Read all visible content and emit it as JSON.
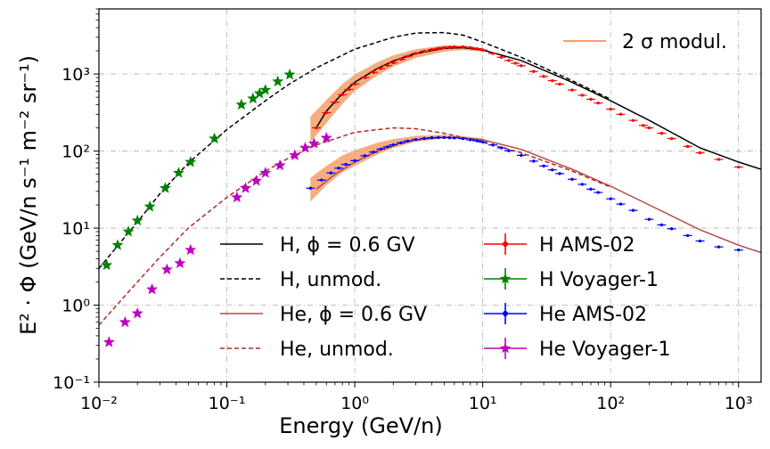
{
  "chart_data": {
    "type": "line",
    "xlabel": "Energy (GeV/n)",
    "ylabel": "E² · Φ (GeV/n s⁻¹ m⁻² sr⁻¹)",
    "xscale": "log",
    "yscale": "log",
    "xlim": [
      0.01,
      1500
    ],
    "ylim": [
      0.1,
      7000
    ],
    "grid": true,
    "x_ticks": [
      {
        "value": 0.01,
        "label": "10⁻²"
      },
      {
        "value": 0.1,
        "label": "10⁻¹"
      },
      {
        "value": 1,
        "label": "10⁰"
      },
      {
        "value": 10,
        "label": "10¹"
      },
      {
        "value": 100,
        "label": "10²"
      },
      {
        "value": 1000,
        "label": "10³"
      }
    ],
    "y_ticks": [
      {
        "value": 0.1,
        "label": "10⁻¹"
      },
      {
        "value": 1,
        "label": "10⁰"
      },
      {
        "value": 10,
        "label": "10¹"
      },
      {
        "value": 100,
        "label": "10²"
      },
      {
        "value": 1000,
        "label": "10³"
      }
    ],
    "legend_upper": {
      "position": "top-right",
      "entries": [
        "2 σ modul."
      ]
    },
    "legend_lower": {
      "position": "bottom-center",
      "left": [
        "H, ϕ = 0.6 GV",
        "H, unmod.",
        "He, ϕ = 0.6 GV",
        "He, unmod."
      ],
      "right": [
        "H AMS-02",
        "H Voyager-1",
        "He AMS-02",
        "He Voyager-1"
      ]
    },
    "series": [
      {
        "name": "H, ϕ = 0.6 GV",
        "kind": "line",
        "color": "#000000",
        "dash": "solid",
        "x": [
          0.5,
          0.6,
          0.8,
          1,
          1.5,
          2,
          3,
          5,
          7,
          10,
          20,
          50,
          100,
          200,
          500,
          1000,
          1500
        ],
        "y": [
          200,
          330,
          560,
          780,
          1180,
          1480,
          1850,
          2150,
          2200,
          2050,
          1500,
          780,
          450,
          250,
          110,
          72,
          58
        ]
      },
      {
        "name": "H, unmod.",
        "kind": "line",
        "color": "#000000",
        "dash": "dashed",
        "x": [
          0.01,
          0.02,
          0.03,
          0.05,
          0.1,
          0.2,
          0.3,
          0.5,
          1,
          2,
          3,
          5,
          7,
          10,
          20,
          50,
          100
        ],
        "y": [
          3,
          12,
          28,
          70,
          190,
          450,
          720,
          1200,
          2100,
          3000,
          3400,
          3450,
          3200,
          2600,
          1650,
          820,
          470
        ]
      },
      {
        "name": "He, ϕ = 0.6 GV",
        "kind": "line",
        "color": "#b04a4a",
        "dash": "solid",
        "x": [
          0.5,
          0.7,
          1,
          1.5,
          2,
          3,
          5,
          7,
          10,
          20,
          50,
          100,
          200,
          500,
          1000,
          1500
        ],
        "y": [
          32,
          50,
          72,
          100,
          120,
          140,
          150,
          148,
          140,
          105,
          58,
          35,
          20,
          9.5,
          6,
          4.8
        ]
      },
      {
        "name": "He, unmod.",
        "kind": "line",
        "color": "#b02a2a",
        "dash": "dashed",
        "x": [
          0.01,
          0.02,
          0.03,
          0.05,
          0.1,
          0.2,
          0.3,
          0.5,
          1,
          2,
          3,
          5,
          7,
          10,
          20,
          50,
          100
        ],
        "y": [
          0.55,
          2,
          4.2,
          10,
          25,
          55,
          80,
          120,
          175,
          200,
          195,
          170,
          150,
          130,
          95,
          55,
          34
        ]
      },
      {
        "name": "2 σ modul.",
        "kind": "band",
        "color": "#f5a06a",
        "x": [
          0.45,
          0.6,
          0.8,
          1,
          1.5,
          2,
          3,
          5,
          7,
          10
        ],
        "low": [
          130,
          230,
          410,
          600,
          960,
          1250,
          1620,
          1950,
          2050,
          1950
        ],
        "high": [
          280,
          460,
          740,
          980,
          1420,
          1740,
          2100,
          2350,
          2350,
          2150
        ],
        "x2": [
          0.45,
          0.6,
          0.8,
          1,
          1.5,
          2,
          3,
          5,
          7,
          10
        ],
        "low2": [
          22,
          36,
          53,
          64,
          90,
          110,
          132,
          146,
          146,
          138
        ],
        "high2": [
          45,
          64,
          88,
          102,
          128,
          143,
          158,
          162,
          156,
          146
        ]
      },
      {
        "name": "H AMS-02",
        "kind": "points",
        "marker": "dot",
        "color": "#ff0000",
        "x": [
          0.5,
          0.6,
          0.7,
          0.8,
          0.9,
          1.0,
          1.2,
          1.4,
          1.6,
          1.8,
          2.0,
          2.3,
          2.6,
          3.0,
          3.5,
          4.0,
          4.5,
          5.0,
          5.5,
          6.0,
          7.0,
          8.0,
          9.0,
          10,
          12,
          14,
          16,
          18,
          20,
          25,
          30,
          35,
          40,
          50,
          60,
          70,
          80,
          100,
          120,
          150,
          180,
          200,
          250,
          300,
          400,
          500,
          700,
          1000
        ],
        "y": [
          200,
          315,
          430,
          540,
          630,
          740,
          900,
          1050,
          1180,
          1290,
          1400,
          1550,
          1700,
          1850,
          1980,
          2080,
          2150,
          2200,
          2230,
          2250,
          2250,
          2200,
          2130,
          2050,
          1850,
          1650,
          1500,
          1380,
          1280,
          1080,
          930,
          820,
          740,
          620,
          530,
          470,
          420,
          350,
          300,
          250,
          215,
          200,
          170,
          145,
          115,
          95,
          78,
          62
        ]
      },
      {
        "name": "H Voyager-1",
        "kind": "points",
        "marker": "star",
        "color": "#008000",
        "x": [
          0.0115,
          0.014,
          0.017,
          0.02,
          0.025,
          0.033,
          0.042,
          0.052,
          0.08,
          0.13,
          0.16,
          0.18,
          0.2,
          0.25,
          0.31
        ],
        "y": [
          3.3,
          6,
          9,
          12.5,
          19,
          33,
          52,
          72,
          145,
          400,
          480,
          560,
          620,
          800,
          980
        ]
      },
      {
        "name": "He AMS-02",
        "kind": "points",
        "marker": "dot",
        "color": "#0000ff",
        "x": [
          0.45,
          0.55,
          0.65,
          0.75,
          0.85,
          1.0,
          1.2,
          1.4,
          1.6,
          1.8,
          2.0,
          2.3,
          2.6,
          3.0,
          3.5,
          4.0,
          4.5,
          5.0,
          5.5,
          6.0,
          7.0,
          8.0,
          9.0,
          10,
          12,
          14,
          16,
          20,
          25,
          30,
          35,
          40,
          50,
          60,
          70,
          80,
          100,
          120,
          150,
          200,
          250,
          300,
          400,
          500,
          700,
          1000
        ],
        "y": [
          33,
          42,
          52,
          60,
          67,
          75,
          87,
          97,
          106,
          113,
          120,
          128,
          135,
          141,
          146,
          149,
          150,
          150,
          149,
          148,
          145,
          140,
          136,
          131,
          120,
          110,
          101,
          88,
          74,
          64,
          57,
          51,
          43,
          37,
          32,
          29,
          24,
          20.5,
          17,
          13,
          11,
          9.8,
          8,
          6.8,
          5.7,
          5.2
        ]
      },
      {
        "name": "He Voyager-1",
        "kind": "points",
        "marker": "star",
        "color": "#bf00bf",
        "x": [
          0.012,
          0.016,
          0.02,
          0.026,
          0.034,
          0.043,
          0.052,
          0.12,
          0.14,
          0.17,
          0.2,
          0.26,
          0.34,
          0.41,
          0.48,
          0.6
        ],
        "y": [
          0.33,
          0.6,
          0.78,
          1.6,
          2.9,
          3.5,
          5.2,
          25,
          33,
          41,
          52,
          65,
          88,
          110,
          125,
          148
        ]
      }
    ]
  }
}
